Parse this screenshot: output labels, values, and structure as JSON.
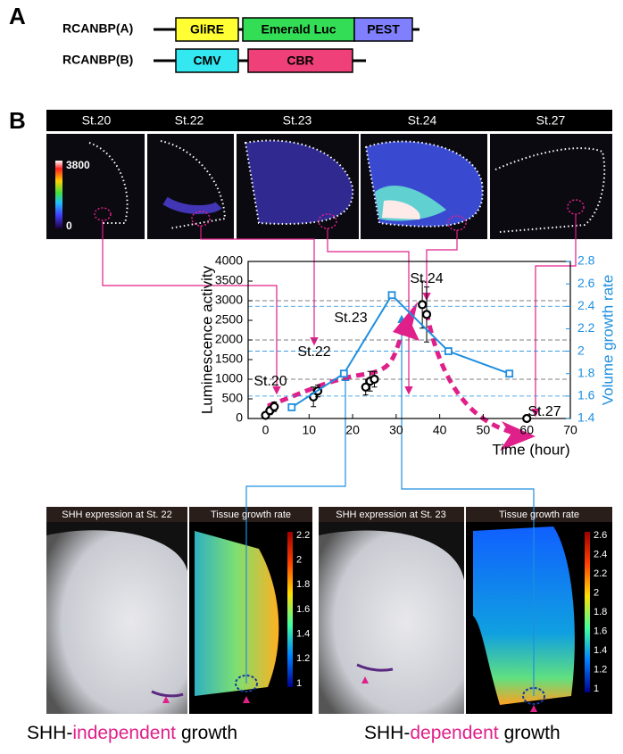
{
  "panel_a": {
    "label": "A",
    "constructs": [
      {
        "name": "RCANBP(A)",
        "parts": [
          "GliRE",
          "Emerald Luc",
          "PEST"
        ]
      },
      {
        "name": "RCANBP(B)",
        "parts": [
          "CMV",
          "CBR"
        ]
      }
    ]
  },
  "panel_b": {
    "label": "B",
    "stages": [
      "St.20",
      "St.22",
      "St.23",
      "St.24",
      "St.27"
    ],
    "colorbar": {
      "max": 3800,
      "min": 0
    }
  },
  "chart_data": {
    "type": "line",
    "xlabel": "Time (hour)",
    "ylabel": "Luminescence activity",
    "y2label": "Volume growth rate",
    "xlim": [
      -4,
      70
    ],
    "xticks": [
      0,
      10,
      20,
      30,
      40,
      50,
      60,
      70
    ],
    "ylim": [
      0,
      4000
    ],
    "yticks": [
      0,
      500,
      1000,
      1500,
      2000,
      2500,
      3000,
      3500,
      4000
    ],
    "y2lim": [
      1.4,
      2.8
    ],
    "y2ticks": [
      1.4,
      1.6,
      1.8,
      2,
      2.2,
      2.4,
      2.6,
      2.8
    ],
    "hlines": [
      1000,
      2000,
      3000
    ],
    "y2lines": [
      1.6,
      2,
      2.4
    ],
    "annotations": [
      "St.20",
      "St.22",
      "St.23",
      "St.24",
      "St.27"
    ],
    "series": [
      {
        "color": "#000000",
        "marker": "circle",
        "x": [
          0,
          1,
          2,
          11,
          12,
          23,
          24,
          25,
          36,
          37,
          60
        ],
        "values": [
          80,
          200,
          300,
          550,
          700,
          800,
          950,
          1000,
          2900,
          2650,
          0
        ],
        "errors": [
          60,
          100,
          120,
          250,
          150,
          200,
          250,
          200,
          600,
          700,
          0
        ]
      },
      {
        "color": "#1f8fe0",
        "marker": "square",
        "axis": "y2",
        "x": [
          6,
          18,
          29,
          42,
          56
        ],
        "values": [
          1.5,
          1.8,
          2.5,
          2.0,
          1.8
        ]
      }
    ]
  },
  "bottom_panels": [
    {
      "title": "SHH expression at St. 22"
    },
    {
      "title": "Tissue growth rate",
      "ticks": [
        2.2,
        2,
        1.8,
        1.6,
        1.4,
        1.2,
        1
      ]
    },
    {
      "title": "SHH expression at St. 23"
    },
    {
      "title": "Tissue growth rate",
      "ticks": [
        2.6,
        2.4,
        2.2,
        2,
        1.8,
        1.6,
        1.4,
        1.2,
        1
      ]
    }
  ],
  "captions": [
    {
      "parts": [
        "SHH-",
        "independent",
        "growth"
      ]
    },
    {
      "parts": [
        "SHH-",
        "dependent",
        "growth"
      ]
    }
  ]
}
